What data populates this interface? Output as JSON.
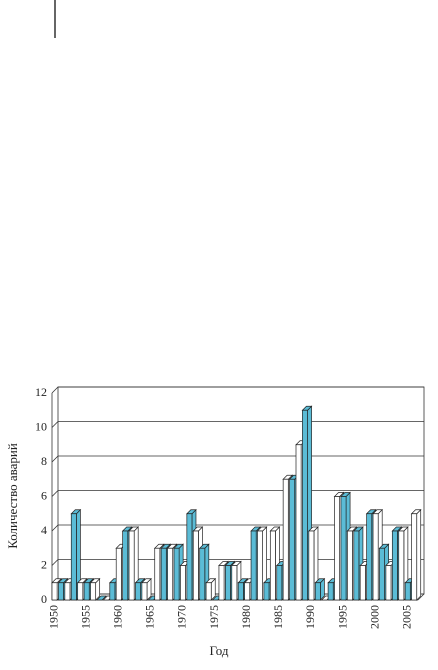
{
  "chart_data": {
    "type": "bar3d",
    "x_label": "Год",
    "y_label": "Количество аварий",
    "categories": [
      "1950",
      null,
      null,
      null,
      null,
      "1955",
      null,
      null,
      null,
      null,
      "1960",
      null,
      null,
      null,
      null,
      "1965",
      null,
      null,
      null,
      null,
      "1970",
      null,
      null,
      null,
      null,
      "1975",
      null,
      null,
      null,
      null,
      "1980",
      null,
      null,
      null,
      null,
      "1985",
      null,
      null,
      null,
      null,
      "1990",
      null,
      null,
      null,
      null,
      "1995",
      null,
      null,
      null,
      null,
      "2000",
      null,
      null,
      null,
      null,
      "2005",
      null
    ],
    "values": [
      1,
      1,
      1,
      5,
      1,
      1,
      1,
      0,
      0,
      1,
      3,
      4,
      4,
      1,
      1,
      0,
      3,
      3,
      3,
      3,
      2,
      5,
      4,
      3,
      1,
      0,
      2,
      2,
      2,
      1,
      1,
      4,
      4,
      1,
      4,
      2,
      7,
      7,
      9,
      11,
      4,
      1,
      0,
      1,
      6,
      6,
      4,
      4,
      2,
      5,
      5,
      3,
      2,
      4,
      4,
      1,
      5
    ],
    "colors": [
      "#ffffff",
      "#5bbcd6"
    ],
    "ylim": [
      0,
      12
    ],
    "yticks": [
      0,
      2,
      4,
      6,
      8,
      10,
      12
    ],
    "grid": true
  }
}
